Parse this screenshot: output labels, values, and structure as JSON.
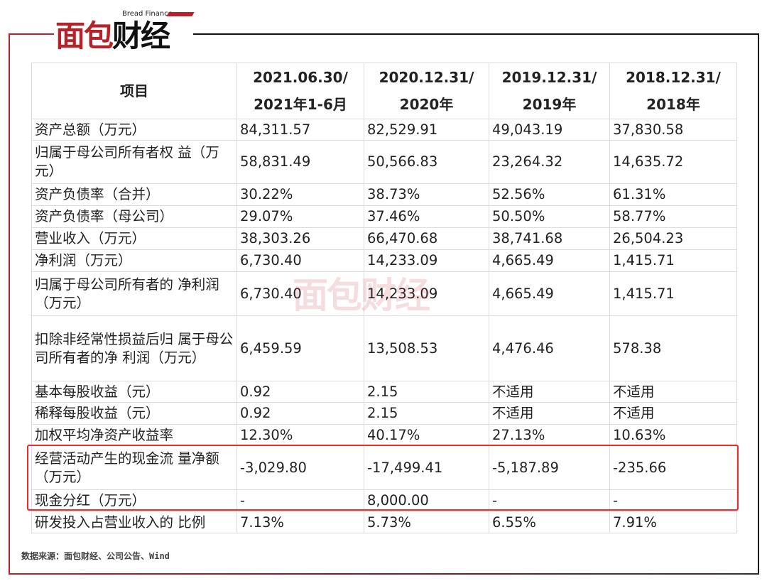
{
  "logo": {
    "sub": "Bread Finance",
    "main_red": "面包",
    "main_black": "财经"
  },
  "watermark": "面包财经",
  "table": {
    "headers": [
      [
        "项目",
        ""
      ],
      [
        "2021.06.30/",
        "2021年1-6月"
      ],
      [
        "2020.12.31/",
        "2020年"
      ],
      [
        "2019.12.31/",
        "2019年"
      ],
      [
        "2018.12.31/",
        "2018年"
      ]
    ],
    "rows": [
      [
        "资产总额（万元）",
        "84,311.57",
        "82,529.91",
        "49,043.19",
        "37,830.58"
      ],
      [
        "归属于母公司所有者权 益（万元）",
        "58,831.49",
        "50,566.83",
        "23,264.32",
        "14,635.72"
      ],
      [
        "资产负债率（合并）",
        "30.22%",
        "38.73%",
        "52.56%",
        "61.31%"
      ],
      [
        "资产负债率（母公司）",
        "29.07%",
        "37.46%",
        "50.50%",
        "58.77%"
      ],
      [
        "营业收入（万元）",
        "38,303.26",
        "66,470.68",
        "38,741.68",
        "26,504.23"
      ],
      [
        "净利润（万元）",
        "6,730.40",
        "14,233.09",
        "4,665.49",
        "1,415.71"
      ],
      [
        "归属于母公司所有者的 净利润（万元）",
        "6,730.40",
        "14,233.09",
        "4,665.49",
        "1,415.71"
      ],
      [
        "扣除非经常性损益后归 属于母公司所有者的净 利润（万元）",
        "6,459.59",
        "13,508.53",
        "4,476.46",
        "578.38"
      ],
      [
        "基本每股收益（元）",
        "0.92",
        "2.15",
        "不适用",
        "不适用"
      ],
      [
        "稀释每股收益（元）",
        "0.92",
        "2.15",
        "不适用",
        "不适用"
      ],
      [
        "加权平均净资产收益率",
        "12.30%",
        "40.17%",
        "27.13%",
        "10.63%"
      ],
      [
        "经营活动产生的现金流 量净额（万元）",
        "-3,029.80",
        "-17,499.41",
        "-5,187.89",
        "-235.66"
      ],
      [
        "现金分红（万元）",
        "-",
        "8,000.00",
        "-",
        "-"
      ],
      [
        "研发投入占营业收入的 比例",
        "7.13%",
        "5.73%",
        "6.55%",
        "7.91%"
      ]
    ],
    "highlight_color": "#ee2a2a"
  },
  "source": "数据来源：面包财经、公司公告、Wind"
}
